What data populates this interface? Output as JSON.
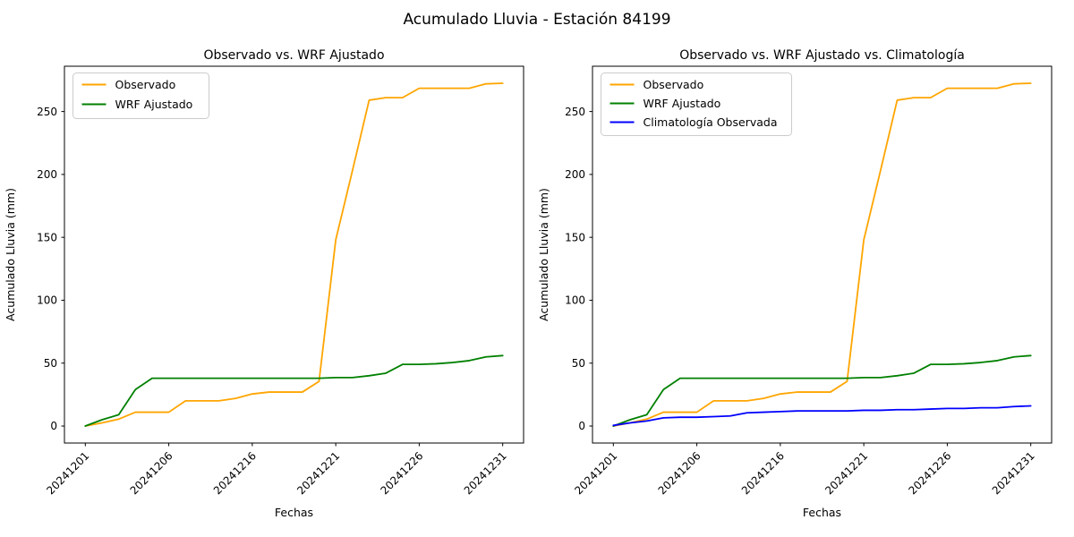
{
  "figure": {
    "suptitle": "Acumulado Lluvia - Estación 84199",
    "background": "#ffffff"
  },
  "colors": {
    "observado": "#FFA500",
    "wrf_ajustado": "#008000",
    "climatologia": "#0000FF",
    "axis": "#000000",
    "legend_border": "#cccccc"
  },
  "chart_data": [
    {
      "type": "line",
      "title": "Observado vs. WRF Ajustado",
      "xlabel": "Fechas",
      "ylabel": "Acumulado Lluvia (mm)",
      "x_dates": [
        "20241201",
        "20241202",
        "20241203",
        "20241204",
        "20241205",
        "20241206",
        "20241207",
        "20241208",
        "20241209",
        "20241210",
        "20241216",
        "20241217",
        "20241218",
        "20241219",
        "20241220",
        "20241221",
        "20241222",
        "20241223",
        "20241224",
        "20241225",
        "20241226",
        "20241227",
        "20241228",
        "20241229",
        "20241230",
        "20241231"
      ],
      "x_tick_positions": [
        0,
        5,
        10,
        15,
        20,
        25
      ],
      "x_tick_labels": [
        "20241201",
        "20241206",
        "20241216",
        "20241221",
        "20241226",
        "20241231"
      ],
      "y_ticks": [
        0,
        50,
        100,
        150,
        200,
        250
      ],
      "xlim": [
        -1.25,
        26.25
      ],
      "ylim": [
        -13.5,
        286
      ],
      "grid": false,
      "legend_position": "upper-left",
      "series": [
        {
          "name": "Observado",
          "color": "#FFA500",
          "values": [
            0,
            2.5,
            5.5,
            11,
            11,
            11,
            20,
            20,
            20,
            22,
            25.5,
            27,
            27,
            27,
            35.5,
            148,
            203,
            259,
            261,
            261,
            268.5,
            268.5,
            268.5,
            268.5,
            272,
            272.5
          ]
        },
        {
          "name": "WRF Ajustado",
          "color": "#008000",
          "values": [
            0,
            5,
            9,
            29,
            38,
            38,
            38,
            38,
            38,
            38,
            38,
            38,
            38,
            38,
            38,
            38.5,
            38.5,
            40,
            42,
            49,
            49,
            49.5,
            50.5,
            52,
            55,
            56
          ]
        }
      ]
    },
    {
      "type": "line",
      "title": "Observado vs. WRF Ajustado vs. Climatología",
      "xlabel": "Fechas",
      "ylabel": "Acumulado Lluvia (mm)",
      "x_dates": [
        "20241201",
        "20241202",
        "20241203",
        "20241204",
        "20241205",
        "20241206",
        "20241207",
        "20241208",
        "20241209",
        "20241210",
        "20241216",
        "20241217",
        "20241218",
        "20241219",
        "20241220",
        "20241221",
        "20241222",
        "20241223",
        "20241224",
        "20241225",
        "20241226",
        "20241227",
        "20241228",
        "20241229",
        "20241230",
        "20241231"
      ],
      "x_tick_positions": [
        0,
        5,
        10,
        15,
        20,
        25
      ],
      "x_tick_labels": [
        "20241201",
        "20241206",
        "20241216",
        "20241221",
        "20241226",
        "20241231"
      ],
      "y_ticks": [
        0,
        50,
        100,
        150,
        200,
        250
      ],
      "xlim": [
        -1.25,
        26.25
      ],
      "ylim": [
        -13.5,
        286
      ],
      "grid": false,
      "legend_position": "upper-left",
      "series": [
        {
          "name": "Observado",
          "color": "#FFA500",
          "values": [
            0,
            2.5,
            5.5,
            11,
            11,
            11,
            20,
            20,
            20,
            22,
            25.5,
            27,
            27,
            27,
            35.5,
            148,
            203,
            259,
            261,
            261,
            268.5,
            268.5,
            268.5,
            268.5,
            272,
            272.5
          ]
        },
        {
          "name": "WRF Ajustado",
          "color": "#008000",
          "values": [
            0,
            5,
            9,
            29,
            38,
            38,
            38,
            38,
            38,
            38,
            38,
            38,
            38,
            38,
            38,
            38.5,
            38.5,
            40,
            42,
            49,
            49,
            49.5,
            50.5,
            52,
            55,
            56
          ]
        },
        {
          "name": "Climatología Observada",
          "color": "#0000FF",
          "values": [
            0.5,
            2.5,
            4,
            6.5,
            7,
            7,
            7.5,
            8,
            10.5,
            11,
            11.5,
            12,
            12,
            12,
            12,
            12.5,
            12.5,
            13,
            13,
            13.5,
            14,
            14,
            14.5,
            14.5,
            15.5,
            16
          ]
        }
      ]
    }
  ]
}
